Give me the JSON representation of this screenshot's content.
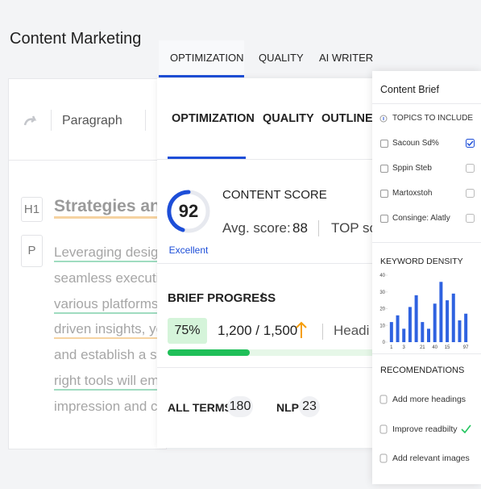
{
  "header": {
    "title": "Content Marketing",
    "tabs": [
      "OPTIMIZATION",
      "QUALITY",
      "AI WRITER"
    ]
  },
  "editor": {
    "block_type": "Paragraph",
    "heading_tag": "H1",
    "heading": "Strategies an",
    "paragraph_tag": "P",
    "lines": [
      "Leveraging design",
      "seamless executio",
      "various platforms.",
      "driven insights, yo",
      "and establish a st",
      "right tools will em",
      "impression and cr"
    ]
  },
  "panel": {
    "tabs": [
      "OPTIMIZATION",
      "QUALITY",
      "OUTLINE"
    ],
    "score": 92,
    "score_label": "Excellent",
    "score_title": "CONTENT SCORE",
    "avg_label": "Avg. score:",
    "avg_score": 88,
    "top_label": "TOP sc",
    "progress_title": "BRIEF PROGRESS",
    "info": "i",
    "progress_percent": "75%",
    "words": "1,200 / 1,500",
    "headings_label": "Headi",
    "terms": [
      {
        "label": "ALL TERMS",
        "count": 180
      },
      {
        "label": "NLP",
        "count": 23
      }
    ]
  },
  "brief": {
    "title": "Content Brief",
    "topics_title": "TOPICS TO INCLUDE",
    "topics": [
      {
        "label": "Sacoun Sd%",
        "checked": true
      },
      {
        "label": "Sppin Steb",
        "checked": false
      },
      {
        "label": "Martoxstoh",
        "checked": false
      },
      {
        "label": "Consinge: Alatly",
        "checked": false
      }
    ],
    "recommendations_title": "RECOMENDATIONS",
    "recommendations": [
      {
        "label": "Add more headings",
        "done": false
      },
      {
        "label": "Improve readbilty",
        "done": true
      },
      {
        "label": "Add relevant images",
        "done": false
      }
    ]
  },
  "chart_data": {
    "type": "bar",
    "title": "KEYWORD DENSITY",
    "categories": [
      "1",
      null,
      "3",
      null,
      null,
      "21",
      null,
      "40",
      null,
      "15",
      null,
      null,
      "97"
    ],
    "values": [
      12,
      16,
      8,
      21,
      28,
      12,
      8,
      23,
      36,
      25,
      29,
      13,
      17
    ],
    "color": "#2f62e0",
    "ylim": [
      0,
      40
    ],
    "yticks": [
      0,
      10,
      20,
      30,
      40
    ]
  }
}
